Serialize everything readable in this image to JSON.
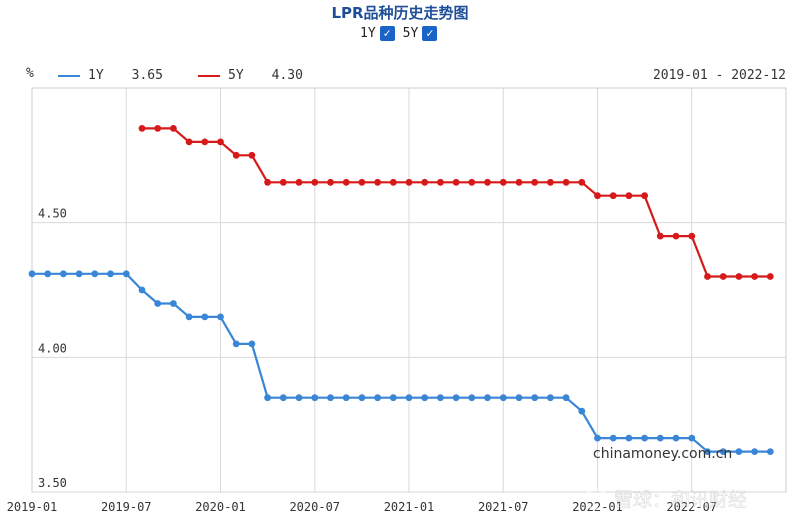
{
  "header": {
    "title": "LPR品种历史走势图",
    "toggle_1y_label": "1Y",
    "toggle_5y_label": "5Y",
    "checkmark": "✓"
  },
  "legend": {
    "unit": "%",
    "items": [
      {
        "label": "1Y",
        "value": "3.65",
        "color": "#3a86d6"
      },
      {
        "label": "5Y",
        "value": "4.30",
        "color": "#d61a1a"
      }
    ],
    "date_range": "2019-01 - 2022-12"
  },
  "watermark": {
    "site": "chinamoney.com.cn",
    "brand": "雪球：和讯财经"
  },
  "chart_data": {
    "type": "line",
    "xlabel": "",
    "ylabel": "%",
    "ylim": [
      3.5,
      5.0
    ],
    "x_tick_labels": [
      "2019-01",
      "2019-07",
      "2020-01",
      "2020-07",
      "2021-01",
      "2021-07",
      "2022-01",
      "2022-07"
    ],
    "y_tick_labels": [
      "3.50",
      "4.00",
      "4.50"
    ],
    "y_tick_values": [
      3.5,
      4.0,
      4.5
    ],
    "grid": true,
    "legend_position": "top-left",
    "x": [
      "2019-01",
      "2019-02",
      "2019-03",
      "2019-04",
      "2019-05",
      "2019-06",
      "2019-07",
      "2019-08",
      "2019-09",
      "2019-10",
      "2019-11",
      "2019-12",
      "2020-01",
      "2020-02",
      "2020-03",
      "2020-04",
      "2020-05",
      "2020-06",
      "2020-07",
      "2020-08",
      "2020-09",
      "2020-10",
      "2020-11",
      "2020-12",
      "2021-01",
      "2021-02",
      "2021-03",
      "2021-04",
      "2021-05",
      "2021-06",
      "2021-07",
      "2021-08",
      "2021-09",
      "2021-10",
      "2021-11",
      "2021-12",
      "2022-01",
      "2022-02",
      "2022-03",
      "2022-04",
      "2022-05",
      "2022-06",
      "2022-07",
      "2022-08",
      "2022-09",
      "2022-10",
      "2022-11",
      "2022-12"
    ],
    "series": [
      {
        "name": "1Y",
        "color": "#3a86d6",
        "values": [
          4.31,
          4.31,
          4.31,
          4.31,
          4.31,
          4.31,
          4.31,
          4.25,
          4.2,
          4.2,
          4.15,
          4.15,
          4.15,
          4.05,
          4.05,
          3.85,
          3.85,
          3.85,
          3.85,
          3.85,
          3.85,
          3.85,
          3.85,
          3.85,
          3.85,
          3.85,
          3.85,
          3.85,
          3.85,
          3.85,
          3.85,
          3.85,
          3.85,
          3.85,
          3.85,
          3.8,
          3.7,
          3.7,
          3.7,
          3.7,
          3.7,
          3.7,
          3.7,
          3.65,
          3.65,
          3.65,
          3.65,
          3.65
        ]
      },
      {
        "name": "5Y",
        "color": "#d61a1a",
        "values": [
          null,
          null,
          null,
          null,
          null,
          null,
          null,
          4.85,
          4.85,
          4.85,
          4.8,
          4.8,
          4.8,
          4.75,
          4.75,
          4.65,
          4.65,
          4.65,
          4.65,
          4.65,
          4.65,
          4.65,
          4.65,
          4.65,
          4.65,
          4.65,
          4.65,
          4.65,
          4.65,
          4.65,
          4.65,
          4.65,
          4.65,
          4.65,
          4.65,
          4.65,
          4.6,
          4.6,
          4.6,
          4.6,
          4.45,
          4.45,
          4.45,
          4.3,
          4.3,
          4.3,
          4.3,
          4.3
        ]
      }
    ]
  }
}
